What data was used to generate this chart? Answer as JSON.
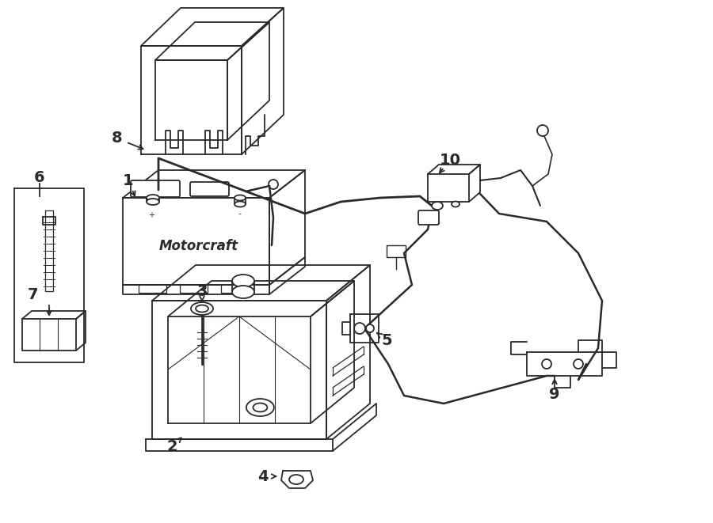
{
  "bg_color": "#ffffff",
  "line_color": "#2a2a2a",
  "lw": 1.3,
  "fig_w": 9.0,
  "fig_h": 6.61,
  "dpi": 100
}
